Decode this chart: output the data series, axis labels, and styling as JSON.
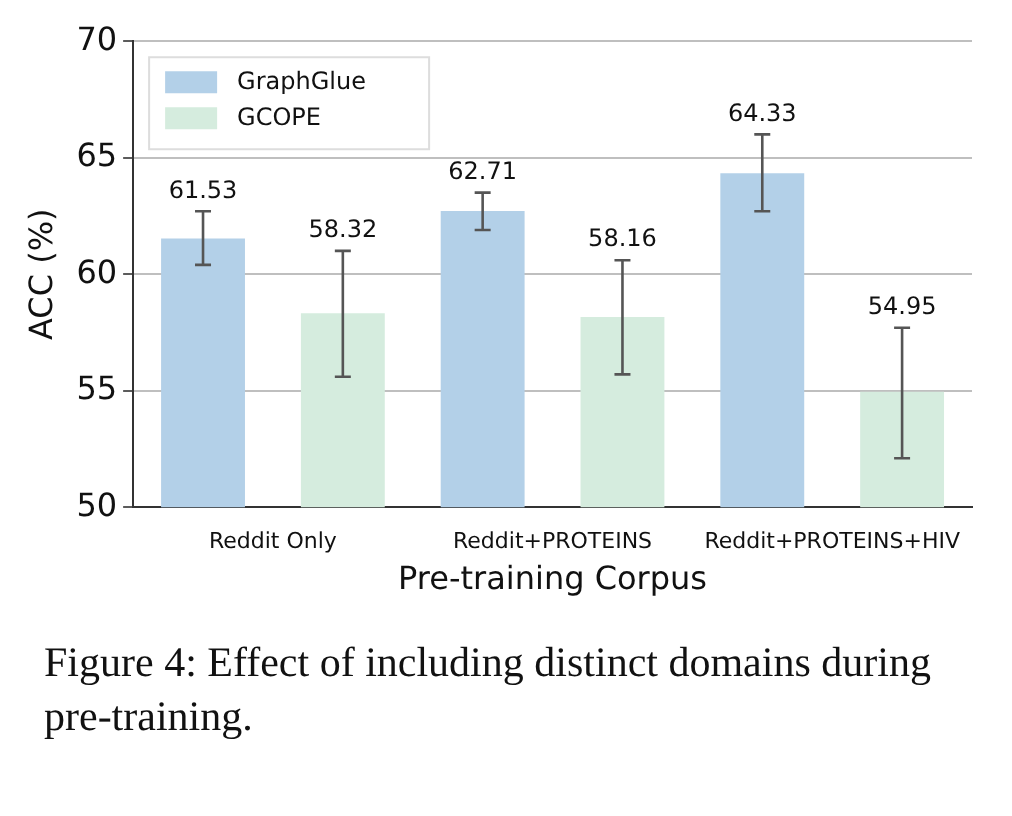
{
  "chart_data": {
    "type": "bar",
    "xlabel": "Pre-training Corpus",
    "ylabel": "ACC (%)",
    "categories": [
      "Reddit Only",
      "Reddit+PROTEINS",
      "Reddit+PROTEINS+HIV"
    ],
    "series": [
      {
        "name": "GraphGlue",
        "color": "#b3d0e8",
        "values": [
          61.53,
          62.71,
          64.33
        ],
        "errors": [
          [
            60.4,
            62.7
          ],
          [
            61.9,
            63.5
          ],
          [
            62.7,
            66.0
          ]
        ]
      },
      {
        "name": "GCOPE",
        "color": "#d5ecde",
        "values": [
          58.32,
          58.16,
          54.95
        ],
        "errors": [
          [
            55.6,
            61.0
          ],
          [
            55.7,
            60.6
          ],
          [
            52.1,
            57.7
          ]
        ]
      }
    ],
    "ylim": [
      50,
      70
    ],
    "yticks": [
      50,
      55,
      60,
      65,
      70
    ],
    "grid": "y",
    "legend": "top left",
    "data_labels": true,
    "annotations": [
      "Figure 4:  Effect of including distinct domains during pre-training."
    ]
  }
}
